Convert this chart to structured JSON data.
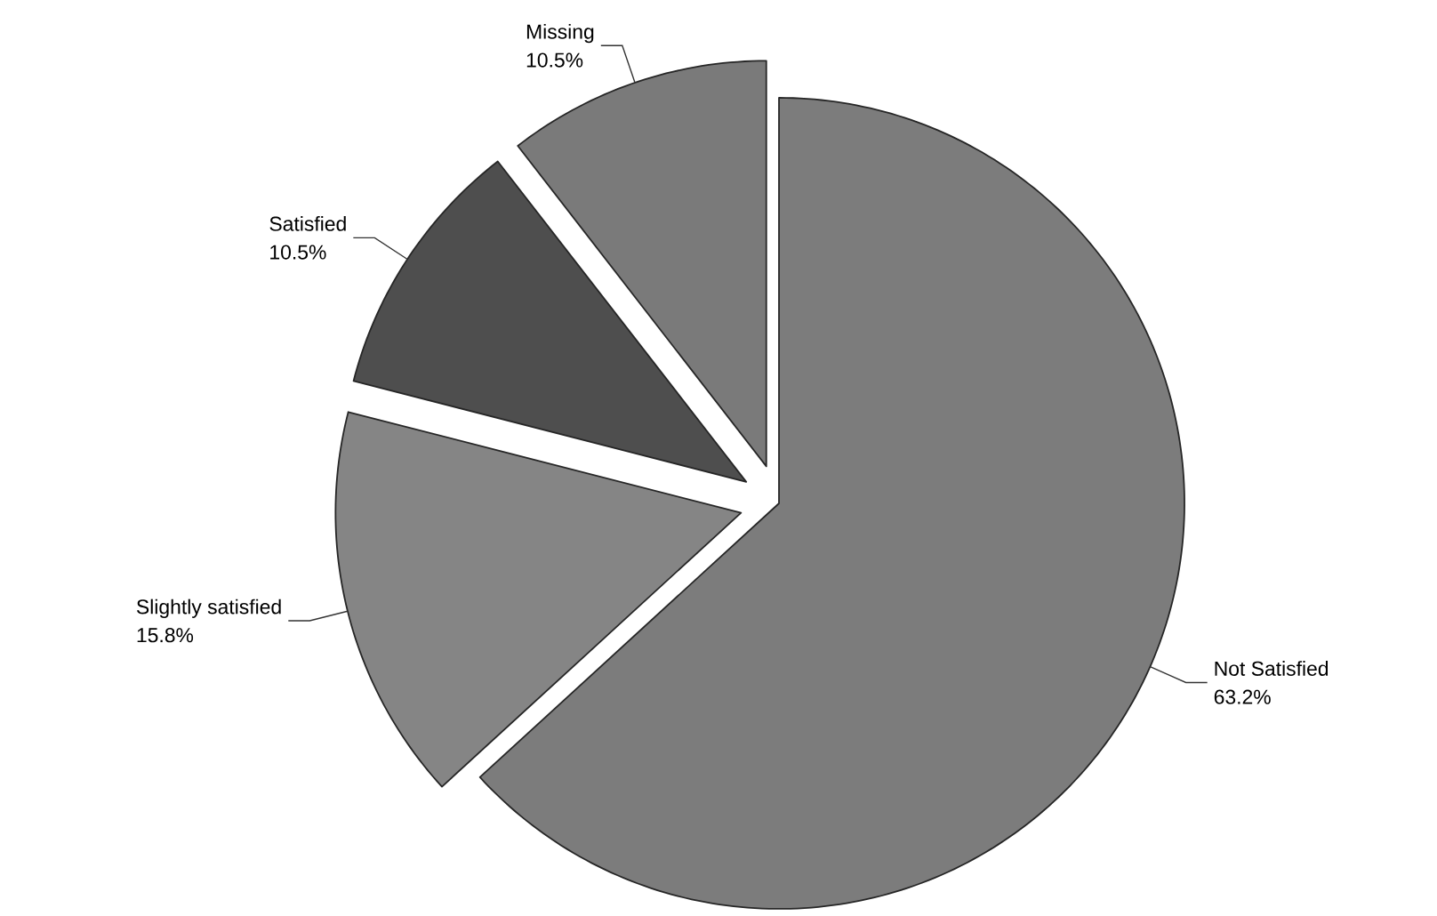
{
  "chart_data": {
    "type": "pie",
    "categories": [
      "Not Satisfied",
      "Slightly satisfied",
      "Satisfied",
      "Missing"
    ],
    "values": [
      63.2,
      15.8,
      10.5,
      10.5
    ],
    "value_labels": [
      "63.2%",
      "15.8%",
      "10.5%",
      "10.5%"
    ],
    "colors": [
      "#7c7c7c",
      "#858585",
      "#4e4e4e",
      "#7a7a7a"
    ]
  }
}
